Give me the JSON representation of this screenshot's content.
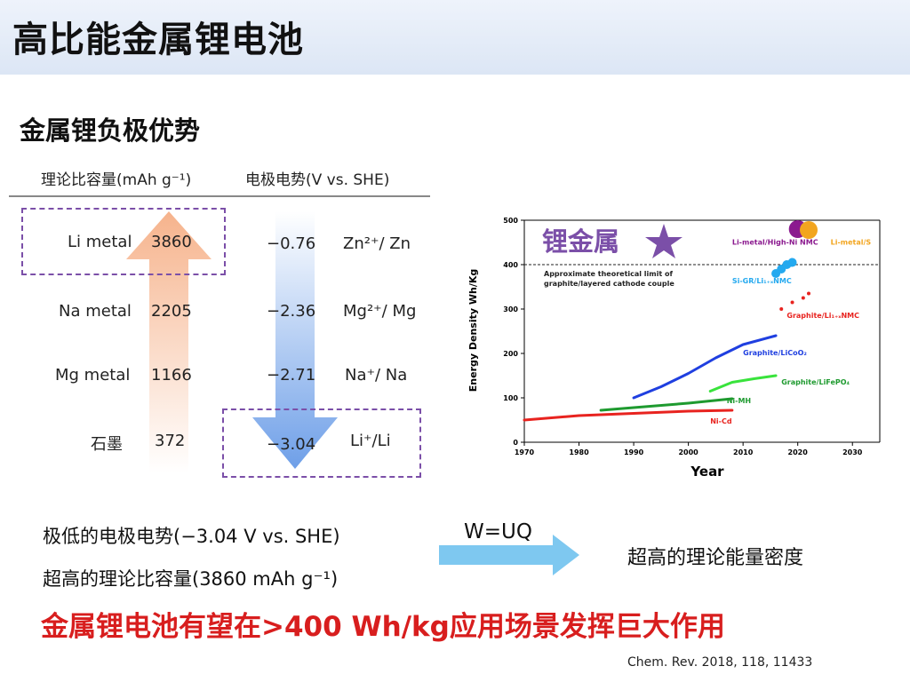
{
  "title": "高比能金属锂电池",
  "subtitle": "金属锂负极优势",
  "table": {
    "header_capacity": "理论比容量(mAh g⁻¹)",
    "header_potential": "电极电势(V vs. SHE)",
    "rows": [
      {
        "material": "Li metal",
        "capacity": "3860",
        "potential": "−0.76",
        "couple": "Zn²⁺/ Zn"
      },
      {
        "material": "Na metal",
        "capacity": "2205",
        "potential": "−2.36",
        "couple": "Mg²⁺/ Mg"
      },
      {
        "material": "Mg metal",
        "capacity": "1166",
        "potential": "−2.71",
        "couple": "Na⁺/ Na"
      },
      {
        "material": "石墨",
        "capacity": "372",
        "potential": "−3.04",
        "couple": "Li⁺/Li"
      }
    ]
  },
  "bullets": {
    "low_potential": "极低的电极电势(−3.04 V vs. SHE)",
    "high_capacity": "超高的理论比容量(3860 mAh g⁻¹)"
  },
  "equation": "W=UQ",
  "result": "超高的理论能量密度",
  "conclusion": "金属锂电池有望在>400 Wh/kg应用场景发挥巨大作用",
  "citation": "Chem. Rev. 2018, 118, 11433",
  "colors": {
    "accent_red": "#d81e1e",
    "purple": "#7b4fa8",
    "orange_arrow": "#f6b38c",
    "blue_arrow": "#6e9fe8"
  },
  "chart_data": {
    "type": "line",
    "title": "",
    "xlabel": "Year",
    "ylabel": "Energy Density Wh/Kg",
    "xlim": [
      1970,
      2035
    ],
    "ylim": [
      0,
      500
    ],
    "xticks": [
      1970,
      1980,
      1990,
      2000,
      2010,
      2020,
      2030
    ],
    "yticks": [
      0,
      100,
      200,
      300,
      400,
      500
    ],
    "limit_line": {
      "y": 400,
      "label": "Approximate theoretical limit of graphite/layered cathode couple"
    },
    "highlight_label": "锂金属",
    "series": [
      {
        "name": "Ni-Cd",
        "color": "#e8231f",
        "x": [
          1970,
          1980,
          1990,
          2000,
          2008
        ],
        "y": [
          50,
          60,
          65,
          70,
          72
        ]
      },
      {
        "name": "Ni-MH",
        "color": "#1e9a2f",
        "x": [
          1984,
          1990,
          2000,
          2008
        ],
        "y": [
          72,
          78,
          88,
          98
        ]
      },
      {
        "name": "Graphite/LiFePO4",
        "color": "#39e33c",
        "x": [
          2004,
          2008,
          2012,
          2016
        ],
        "y": [
          115,
          135,
          143,
          150
        ]
      },
      {
        "name": "Graphite/LiCoO2",
        "color": "#1f3fe0",
        "x": [
          1990,
          1995,
          2000,
          2005,
          2010,
          2016
        ],
        "y": [
          100,
          125,
          155,
          190,
          220,
          240
        ]
      }
    ],
    "points": [
      {
        "name": "Graphite/Li1+xNMC",
        "color": "#e8231f",
        "x": [
          2017,
          2019,
          2021,
          2022
        ],
        "y": [
          300,
          315,
          325,
          335
        ]
      },
      {
        "name": "Si-Gr/Li1+xNMC",
        "color": "#24a9ef",
        "x": [
          2016,
          2017,
          2018,
          2019
        ],
        "y": [
          380,
          390,
          400,
          405
        ]
      },
      {
        "name": "Li-metal/High-Ni NMC",
        "color": "#8b1a8f",
        "x": [
          2020
        ],
        "y": [
          480
        ]
      },
      {
        "name": "Li-metal/S",
        "color": "#f2a51f",
        "x": [
          2022
        ],
        "y": [
          478
        ]
      }
    ],
    "series_labels": {
      "nicd": "Ni-Cd",
      "nimh": "Ni-MH",
      "lfp": "Graphite/LiFePO₄",
      "lco": "Graphite/LiCoO₂",
      "nmc": "Graphite/Li₁₊ₓNMC",
      "sigr": "Si-GR/Li₁₊ₓNMC",
      "limetal": "Li-metal/High-Ni NMC",
      "lis": "Li-metal/S"
    }
  }
}
